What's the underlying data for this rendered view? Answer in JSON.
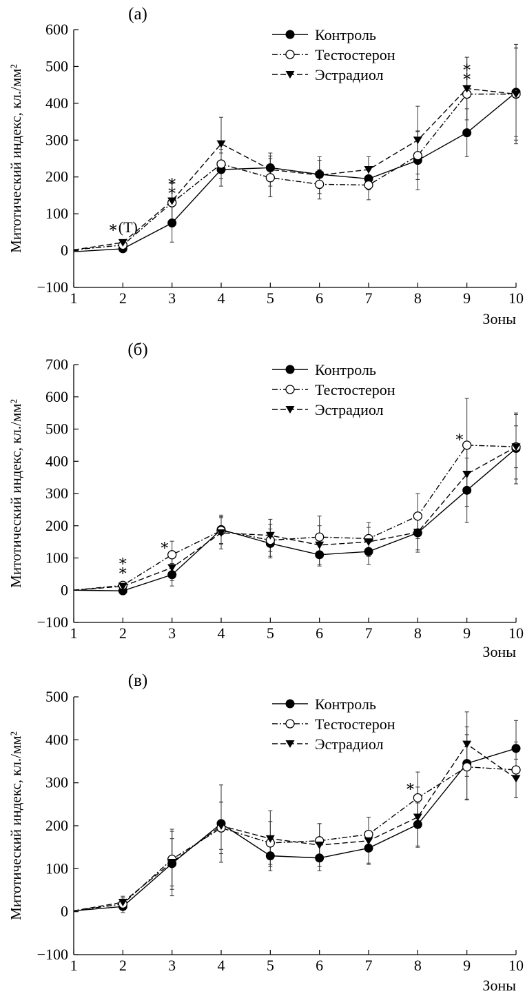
{
  "legend": {
    "control": "Контроль",
    "testosterone": "Тестостерон",
    "estradiol": "Эстрадиол"
  },
  "chart_data": [
    {
      "type": "line",
      "title": "(а)",
      "xlabel": "Зоны",
      "ylabel": "Митотический индекс, кл./мм²",
      "x": [
        1,
        2,
        3,
        4,
        5,
        6,
        7,
        8,
        9,
        10
      ],
      "xlim": [
        1,
        10
      ],
      "ylim": [
        -100,
        600
      ],
      "yticks": [
        -100,
        0,
        100,
        200,
        300,
        400,
        500,
        600
      ],
      "legend_position": "top-right",
      "series": [
        {
          "name": "Контроль",
          "values": [
            -3,
            5,
            75,
            220,
            225,
            207,
            195,
            245,
            320,
            430
          ],
          "errors": [
            0,
            0,
            52,
            45,
            32,
            38,
            30,
            80,
            65,
            120
          ]
        },
        {
          "name": "Тестостерон",
          "values": [
            2,
            15,
            130,
            235,
            198,
            180,
            178,
            258,
            425,
            425
          ],
          "errors": [
            0,
            0,
            52,
            40,
            52,
            40,
            40,
            65,
            100,
            125
          ]
        },
        {
          "name": "Эстрадиол",
          "values": [
            2,
            22,
            135,
            290,
            220,
            205,
            220,
            300,
            440,
            425
          ],
          "errors": [
            0,
            0,
            50,
            72,
            45,
            50,
            35,
            92,
            85,
            135
          ]
        }
      ],
      "annotations": [
        {
          "x": 2,
          "y": 50,
          "text": "∗(Т)"
        },
        {
          "x": 3,
          "y": 175,
          "text": "∗"
        },
        {
          "x": 3,
          "y": 150,
          "text": "∗"
        },
        {
          "x": 9,
          "y": 485,
          "text": "∗"
        },
        {
          "x": 9,
          "y": 460,
          "text": "∗"
        }
      ]
    },
    {
      "type": "line",
      "title": "(б)",
      "xlabel": "Зоны",
      "ylabel": "Митотический индекс, кл./мм²",
      "x": [
        1,
        2,
        3,
        4,
        5,
        6,
        7,
        8,
        9,
        10
      ],
      "xlim": [
        1,
        10
      ],
      "ylim": [
        -100,
        700
      ],
      "yticks": [
        -100,
        0,
        100,
        200,
        300,
        400,
        500,
        600,
        700
      ],
      "legend_position": "top-right",
      "series": [
        {
          "name": "Контроль",
          "values": [
            0,
            -2,
            48,
            188,
            145,
            110,
            120,
            178,
            310,
            440
          ],
          "errors": [
            0,
            0,
            35,
            45,
            45,
            35,
            40,
            60,
            100,
            110
          ]
        },
        {
          "name": "Тестостерон",
          "values": [
            0,
            15,
            110,
            185,
            155,
            165,
            160,
            230,
            450,
            445
          ],
          "errors": [
            0,
            0,
            42,
            40,
            50,
            65,
            50,
            70,
            145,
            100
          ]
        },
        {
          "name": "Эстрадиол",
          "values": [
            0,
            12,
            70,
            178,
            170,
            140,
            150,
            180,
            360,
            445
          ],
          "errors": [
            0,
            0,
            40,
            50,
            50,
            60,
            45,
            55,
            100,
            65
          ]
        }
      ],
      "annotations": [
        {
          "x": 2,
          "y": 75,
          "text": "∗"
        },
        {
          "x": 2,
          "y": 45,
          "text": "∗"
        },
        {
          "x": 2.85,
          "y": 125,
          "text": "∗"
        },
        {
          "x": 8.85,
          "y": 460,
          "text": "∗"
        }
      ]
    },
    {
      "type": "line",
      "title": "(в)",
      "xlabel": "Зоны",
      "ylabel": "Митотический индекс, кл./мм²",
      "x": [
        1,
        2,
        3,
        4,
        5,
        6,
        7,
        8,
        9,
        10
      ],
      "xlim": [
        1,
        10
      ],
      "ylim": [
        -100,
        500
      ],
      "yticks": [
        -100,
        0,
        100,
        200,
        300,
        400,
        500
      ],
      "legend_position": "top-right",
      "series": [
        {
          "name": "Контроль",
          "values": [
            2,
            12,
            112,
            205,
            130,
            125,
            148,
            203,
            345,
            380
          ],
          "errors": [
            0,
            14,
            75,
            90,
            35,
            30,
            35,
            50,
            85,
            65
          ]
        },
        {
          "name": "Тестостерон",
          "values": [
            2,
            18,
            122,
            195,
            160,
            165,
            180,
            265,
            337,
            330
          ],
          "errors": [
            0,
            14,
            70,
            60,
            50,
            40,
            40,
            60,
            75,
            65
          ]
        },
        {
          "name": "Эстрадиол",
          "values": [
            2,
            22,
            115,
            200,
            170,
            155,
            165,
            220,
            390,
            310
          ],
          "errors": [
            0,
            14,
            55,
            55,
            65,
            50,
            55,
            70,
            75,
            45
          ]
        }
      ],
      "annotations": [
        {
          "x": 7.85,
          "y": 280,
          "text": "∗"
        }
      ]
    }
  ]
}
